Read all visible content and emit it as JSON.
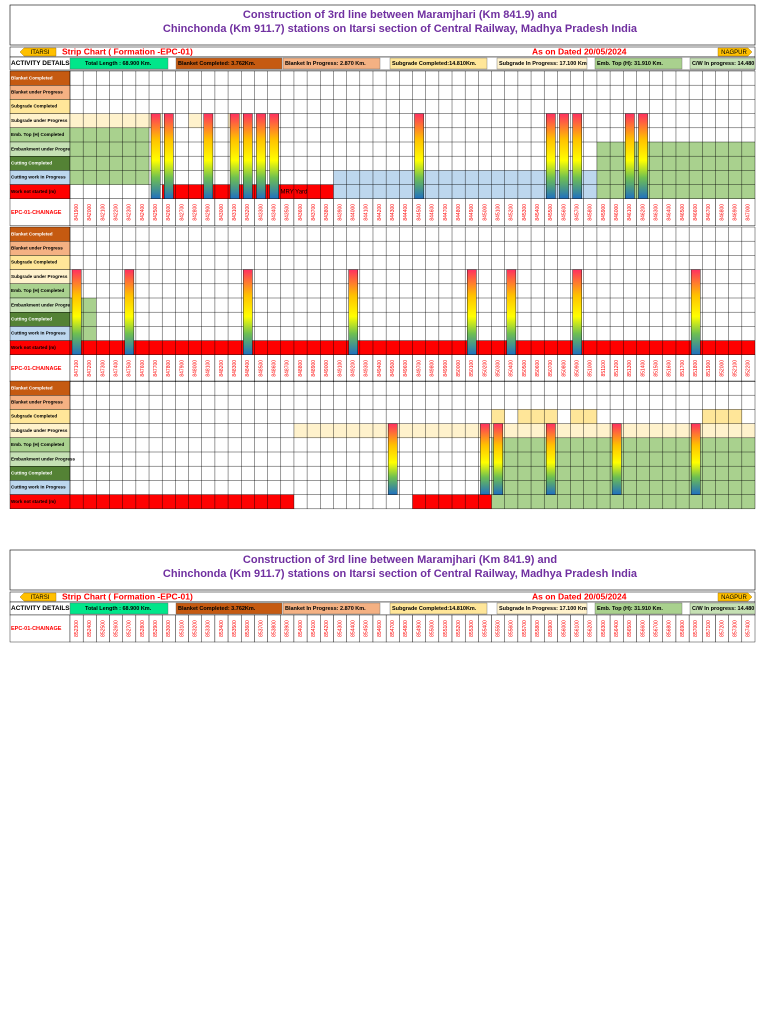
{
  "header": {
    "title_line1": "Construction of 3rd line between Maramjhari (Km 841.9) and",
    "title_line2": "Chinchonda (Km 911.7) stations on Itarsi section of Central Railway, Madhya Pradesh India"
  },
  "legend": {
    "from": "ITARSI",
    "chart_title": "Strip Chart ( Formation -EPC-01)",
    "date": "As on Dated 20/05/2024",
    "to": "NAGPUR"
  },
  "summary": {
    "label": "ACTIVITY DETAILS",
    "items": [
      "Total Length : 68.900 Km.",
      "Blanket Completed: 3.762Km.",
      "Blanket In Progress: 2.870 Km.",
      "Subgrade Completed:14.810Km.",
      "Subgrade In Progress: 17.100 Km",
      "Emb. Top (H): 31.910 Km.",
      "C/W In progress: 14.480"
    ]
  },
  "activities": [
    "Blanket Completed",
    "Blanket under Progress",
    "Subgrade Completed",
    "Subgrade under Progress",
    "Emb. Top (H) Completed",
    "Embankment under Progress",
    "Cutting Completed",
    "Cutting work in Progress",
    "Work not started (m)"
  ],
  "chainage_label": "EPC-01-CHAINAGE",
  "strips": [
    {
      "annotation": "MRY Yard",
      "chainages": [
        "841900",
        "842000",
        "842100",
        "842200",
        "842300",
        "842400",
        "842500",
        "842600",
        "842700",
        "842800",
        "842900",
        "843000",
        "843100",
        "843200",
        "843300",
        "843400",
        "843500",
        "843600",
        "843700",
        "843800",
        "843900",
        "844000",
        "844100",
        "844200",
        "844300",
        "844400",
        "844500",
        "844600",
        "844700",
        "844800",
        "844900",
        "845000",
        "845100",
        "845200",
        "845300",
        "845400",
        "845500",
        "845600",
        "845700",
        "845800",
        "845900",
        "846000",
        "846100",
        "846200",
        "846300",
        "846400",
        "846500",
        "846600",
        "846700",
        "846800",
        "846900",
        "847000"
      ]
    },
    {
      "chainages": [
        "847100",
        "847200",
        "847300",
        "847400",
        "847500",
        "847600",
        "847700",
        "847800",
        "847900",
        "848000",
        "848100",
        "848200",
        "848300",
        "848400",
        "848500",
        "848600",
        "848700",
        "848800",
        "848900",
        "849000",
        "849100",
        "849200",
        "849300",
        "849400",
        "849500",
        "849600",
        "849700",
        "849800",
        "849900",
        "850000",
        "850100",
        "850200",
        "850300",
        "850400",
        "850500",
        "850600",
        "850700",
        "850800",
        "850900",
        "851000",
        "851100",
        "851200",
        "851300",
        "851400",
        "851500",
        "851600",
        "851700",
        "851800",
        "851900",
        "852000",
        "852100",
        "852200"
      ]
    },
    {},
    {
      "chainages": [
        "852300",
        "852400",
        "852500",
        "852600",
        "852700",
        "852800",
        "852900",
        "853000",
        "853100",
        "853200",
        "853300",
        "853400",
        "853500",
        "853600",
        "853700",
        "853800",
        "853900",
        "854000",
        "854100",
        "854200",
        "854300",
        "854400",
        "854500",
        "854600",
        "854700",
        "854800",
        "854900",
        "855000",
        "855100",
        "855200",
        "855300",
        "855400",
        "855500",
        "855600",
        "855700",
        "855800",
        "855900",
        "856000",
        "856100",
        "856200",
        "856300",
        "856400",
        "856500",
        "856600",
        "856700",
        "856800",
        "856900",
        "857000",
        "857100",
        "857200",
        "857300",
        "857400"
      ]
    }
  ]
}
